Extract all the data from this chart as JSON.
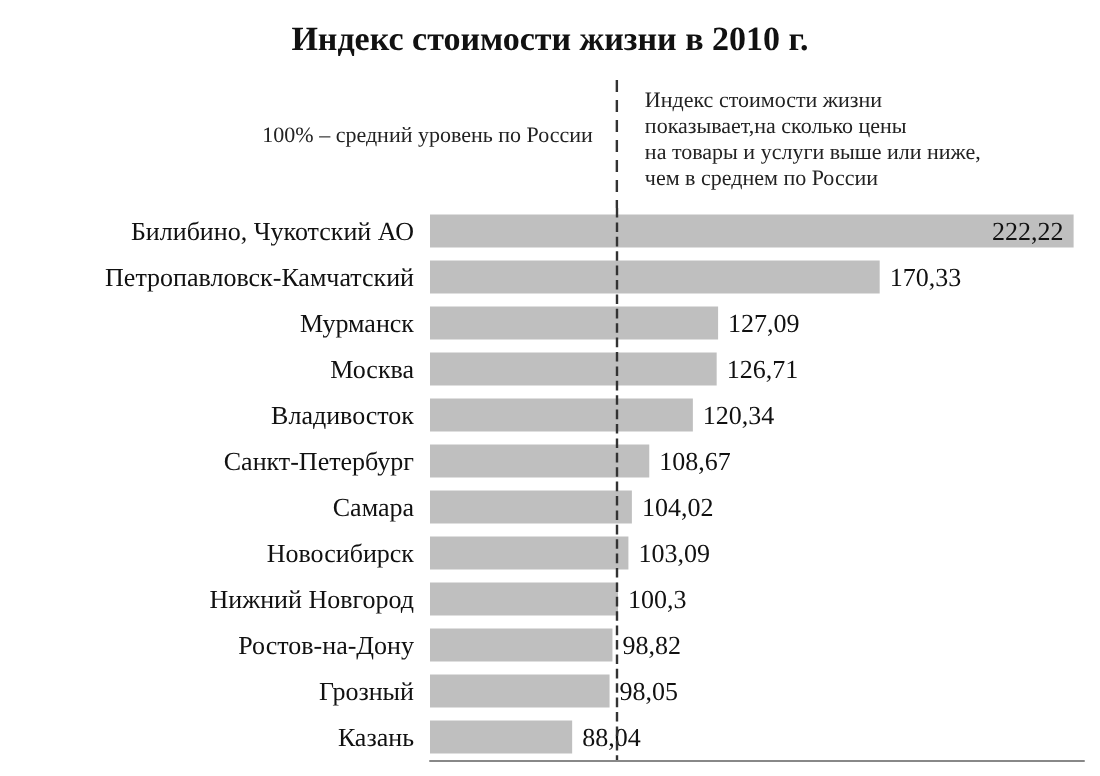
{
  "chart_data": {
    "type": "bar",
    "orientation": "horizontal",
    "title": "Индекс стоимости жизни в 2010 г.",
    "categories": [
      "Билибино, Чукотский АО",
      "Петропавловск-Камчатский",
      "Мурманск",
      "Москва",
      "Владивосток",
      "Санкт-Петербург",
      "Самара",
      "Новосибирск",
      "Нижний Новгород",
      "Ростов-на-Дону",
      "Грозный",
      "Казань"
    ],
    "values": [
      222.22,
      170.33,
      127.09,
      126.71,
      120.34,
      108.67,
      104.02,
      103.09,
      100.3,
      98.82,
      98.05,
      88.04
    ],
    "value_labels": [
      "222,22",
      "170,33",
      "127,09",
      "126,71",
      "120,34",
      "108,67",
      "104,02",
      "103,09",
      "100,3",
      "98,82",
      "98,05",
      "88,04"
    ],
    "color": "#bfbfbf",
    "xlim": [
      50,
      225
    ],
    "tick_labels": "y",
    "ref_lines": [
      {
        "axis": "x",
        "value": 100,
        "label": "100% – средний уровень по России",
        "color": "#333333",
        "line_style": "dashed"
      }
    ],
    "annotations": [
      "Индекс стоимости жизни\nпоказывает,на сколько цены\nна товары и услуги выше или ниже,\nчем в среднем по России"
    ]
  }
}
